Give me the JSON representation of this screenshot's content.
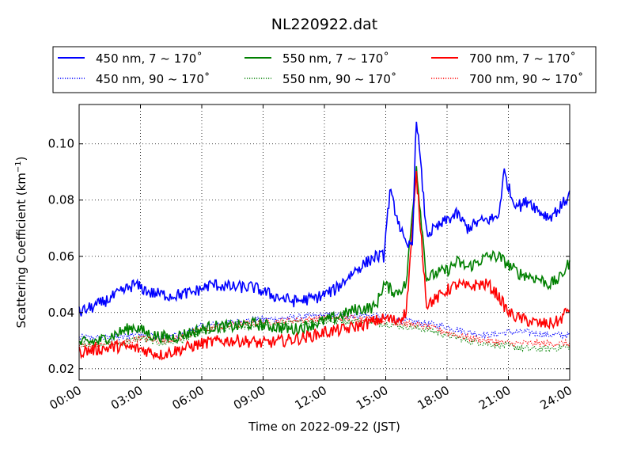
{
  "chart_data": {
    "type": "line",
    "title": "NL220922.dat",
    "xlabel": "Time on 2022-09-22 (JST)",
    "ylabel_main": "Scattering Coefficient (km",
    "ylabel_sup": "−1",
    "ylabel_close": ")",
    "xlim": [
      0,
      24
    ],
    "ylim": [
      0.016,
      0.114
    ],
    "x_ticks": [
      0,
      3,
      6,
      9,
      12,
      15,
      18,
      21,
      24
    ],
    "x_tick_labels": [
      "00:00",
      "03:00",
      "06:00",
      "09:00",
      "12:00",
      "15:00",
      "18:00",
      "21:00",
      "24:00"
    ],
    "y_ticks": [
      0.02,
      0.04,
      0.06,
      0.08,
      0.1
    ],
    "y_tick_labels": [
      "0.02",
      "0.04",
      "0.06",
      "0.08",
      "0.10"
    ],
    "grid": true,
    "legend_position": "top, above plot",
    "series": [
      {
        "name": "450 nm, 7 ~ 170˚",
        "color": "#0000ff",
        "style": "solid",
        "x": [
          0,
          1,
          2,
          2.7,
          3.5,
          4.5,
          5.5,
          6.5,
          7.5,
          8.5,
          9.5,
          10.5,
          11.5,
          12.5,
          13.5,
          14.5,
          14.9,
          15.2,
          16,
          16.3,
          16.5,
          17,
          17.5,
          18,
          18.5,
          19,
          19.5,
          20,
          20.5,
          20.8,
          21.2,
          21.6,
          22,
          22.5,
          23,
          23.5,
          24
        ],
        "y": [
          0.04,
          0.043,
          0.047,
          0.05,
          0.047,
          0.046,
          0.047,
          0.05,
          0.049,
          0.049,
          0.046,
          0.044,
          0.045,
          0.048,
          0.055,
          0.06,
          0.06,
          0.083,
          0.063,
          0.065,
          0.11,
          0.068,
          0.07,
          0.073,
          0.075,
          0.07,
          0.072,
          0.073,
          0.074,
          0.09,
          0.08,
          0.078,
          0.08,
          0.076,
          0.074,
          0.077,
          0.082
        ]
      },
      {
        "name": "550 nm, 7 ~ 170˚",
        "color": "#008000",
        "style": "solid",
        "x": [
          0,
          1,
          2,
          2.7,
          3.5,
          4.5,
          5.5,
          6.5,
          7.5,
          8.5,
          9.5,
          10.5,
          11.5,
          12.5,
          13.5,
          14.5,
          14.9,
          15.5,
          16,
          16.5,
          17,
          17.5,
          18,
          18.5,
          19,
          19.5,
          20,
          20.5,
          21,
          21.5,
          22,
          22.5,
          23,
          23.5,
          24
        ],
        "y": [
          0.029,
          0.03,
          0.033,
          0.035,
          0.032,
          0.031,
          0.033,
          0.035,
          0.035,
          0.036,
          0.035,
          0.034,
          0.036,
          0.038,
          0.041,
          0.042,
          0.05,
          0.047,
          0.05,
          0.092,
          0.052,
          0.054,
          0.055,
          0.058,
          0.056,
          0.058,
          0.06,
          0.06,
          0.057,
          0.054,
          0.053,
          0.052,
          0.05,
          0.052,
          0.058
        ]
      },
      {
        "name": "700 nm, 7 ~ 170˚",
        "color": "#ff0000",
        "style": "solid",
        "x": [
          0,
          1,
          2,
          3,
          4,
          5,
          6,
          7,
          8,
          9,
          10,
          11,
          12,
          13,
          14,
          15,
          15.5,
          16,
          16.5,
          17,
          17.5,
          18,
          18.5,
          19,
          19.5,
          20,
          20.5,
          21,
          21.5,
          22,
          22.5,
          23,
          23.5,
          24
        ],
        "y": [
          0.026,
          0.027,
          0.028,
          0.027,
          0.025,
          0.027,
          0.029,
          0.03,
          0.03,
          0.029,
          0.03,
          0.031,
          0.033,
          0.034,
          0.036,
          0.038,
          0.037,
          0.04,
          0.089,
          0.043,
          0.045,
          0.048,
          0.05,
          0.049,
          0.05,
          0.05,
          0.046,
          0.04,
          0.038,
          0.037,
          0.036,
          0.036,
          0.037,
          0.042
        ]
      },
      {
        "name": "450 nm, 90 ~ 170˚",
        "color": "#0000ff",
        "style": "dotted",
        "x": [
          0,
          2,
          3,
          4,
          5,
          6,
          8,
          10,
          12,
          14,
          15,
          16,
          17,
          18,
          19,
          20,
          21,
          22,
          23,
          24
        ],
        "y": [
          0.031,
          0.031,
          0.033,
          0.031,
          0.032,
          0.035,
          0.037,
          0.038,
          0.039,
          0.039,
          0.038,
          0.037,
          0.036,
          0.035,
          0.033,
          0.032,
          0.033,
          0.033,
          0.032,
          0.032
        ]
      },
      {
        "name": "550 nm, 90 ~ 170˚",
        "color": "#008000",
        "style": "dotted",
        "x": [
          0,
          2,
          3,
          4,
          5,
          6,
          8,
          10,
          12,
          14,
          15,
          16,
          17,
          18,
          19,
          20,
          21,
          22,
          23,
          24
        ],
        "y": [
          0.029,
          0.029,
          0.031,
          0.029,
          0.03,
          0.033,
          0.035,
          0.036,
          0.037,
          0.037,
          0.036,
          0.035,
          0.034,
          0.032,
          0.03,
          0.029,
          0.028,
          0.027,
          0.027,
          0.028
        ]
      },
      {
        "name": "700 nm, 90 ~ 170˚",
        "color": "#ff0000",
        "style": "dotted",
        "x": [
          0,
          2,
          3,
          4,
          5,
          6,
          8,
          10,
          12,
          14,
          15,
          16,
          17,
          18,
          19,
          20,
          21,
          22,
          23,
          24
        ],
        "y": [
          0.028,
          0.029,
          0.031,
          0.03,
          0.031,
          0.034,
          0.036,
          0.037,
          0.038,
          0.038,
          0.037,
          0.036,
          0.035,
          0.033,
          0.031,
          0.03,
          0.029,
          0.029,
          0.029,
          0.029
        ]
      }
    ]
  }
}
